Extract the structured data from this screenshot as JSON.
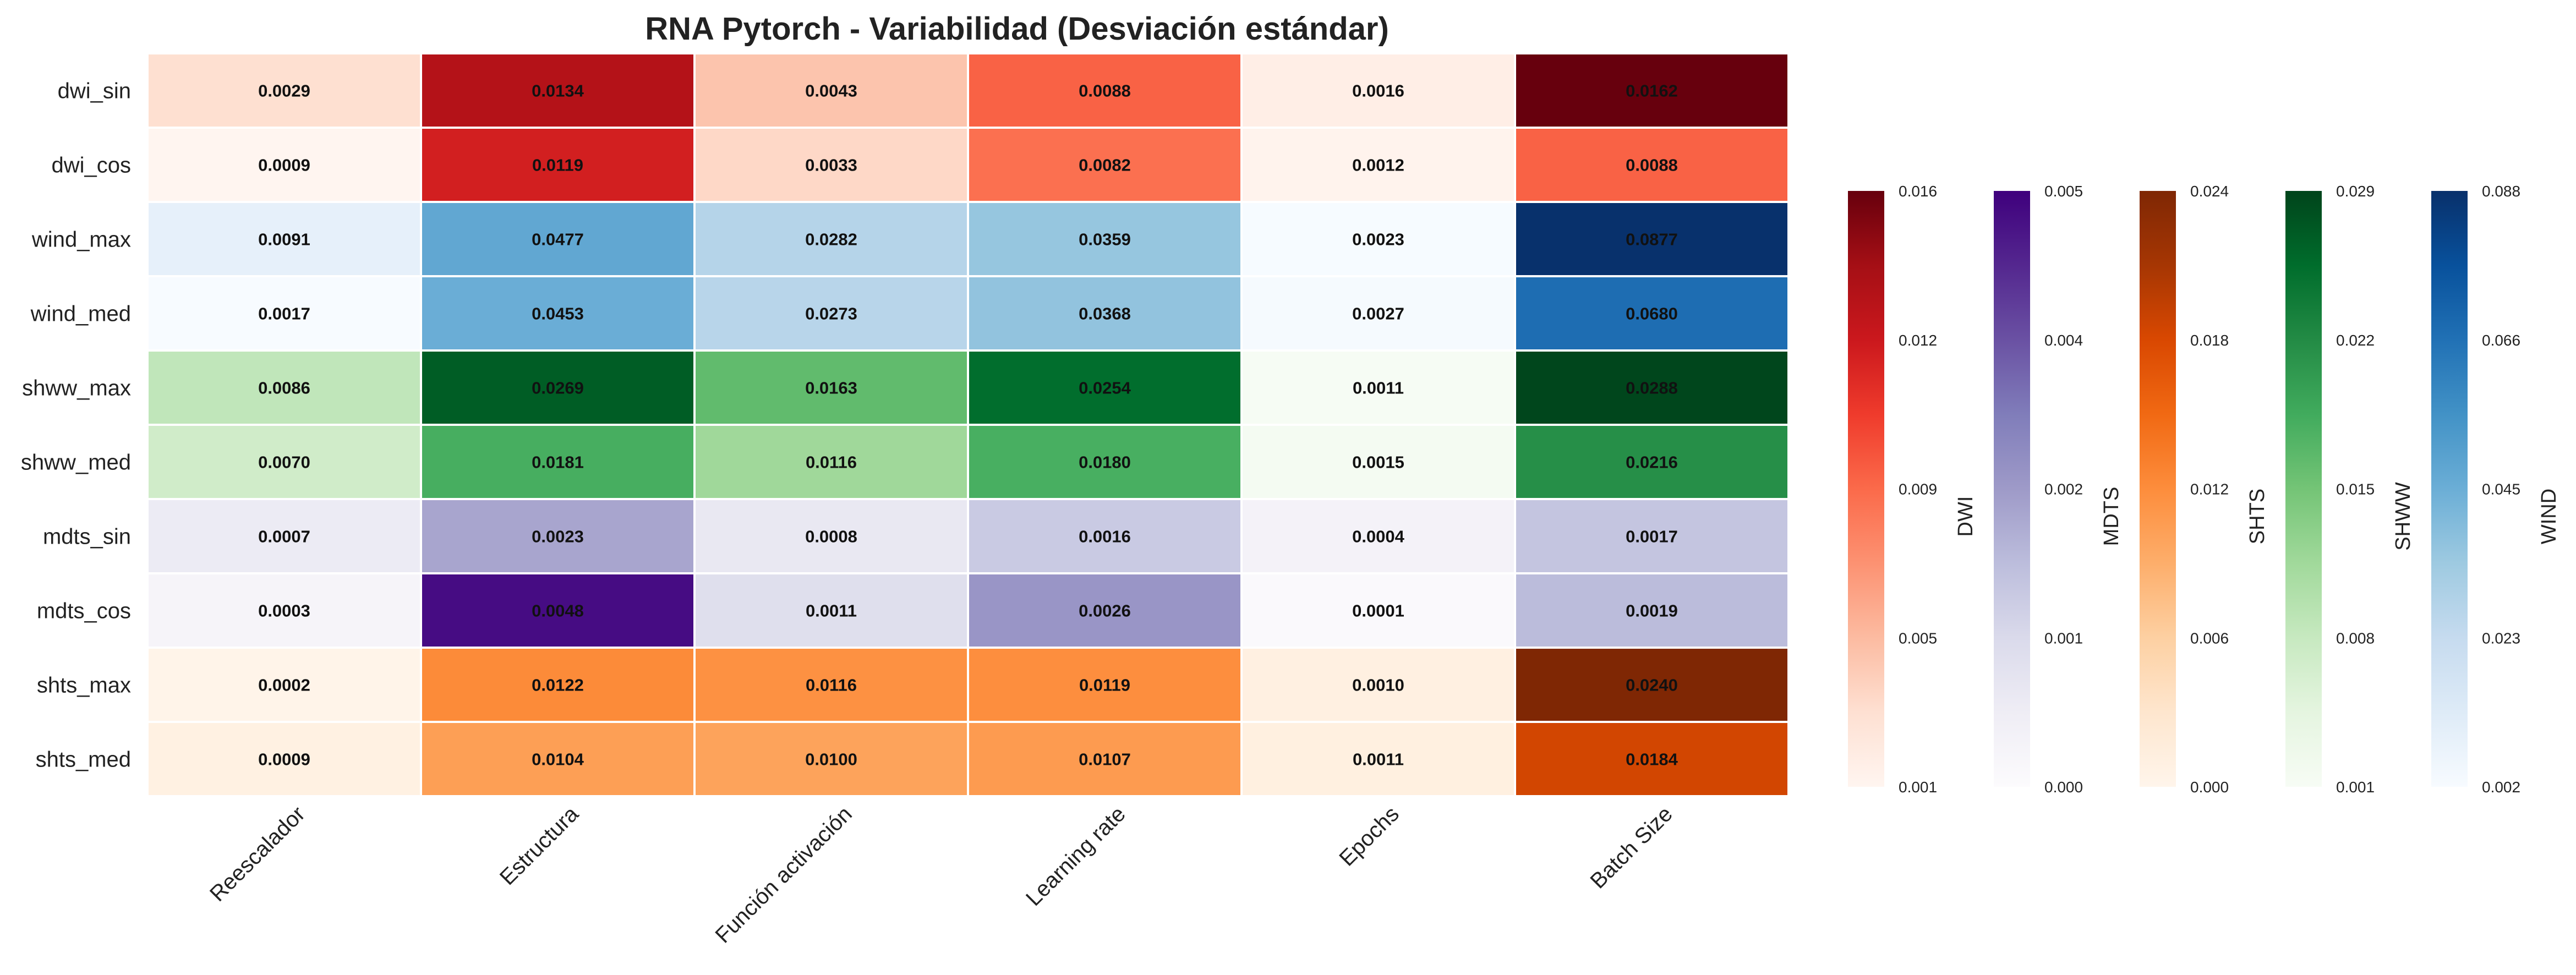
{
  "chart_data": {
    "type": "heatmap",
    "title": "RNA Pytorch - Variabilidad (Desviación estándar)",
    "columns": [
      "Reescalador",
      "Estructura",
      "Función activación",
      "Learning rate",
      "Epochs",
      "Batch Size"
    ],
    "rows": [
      {
        "label": "dwi_sin",
        "group": "DWI",
        "values": [
          "0.0029",
          "0.0134",
          "0.0043",
          "0.0088",
          "0.0016",
          "0.0162"
        ]
      },
      {
        "label": "dwi_cos",
        "group": "DWI",
        "values": [
          "0.0009",
          "0.0119",
          "0.0033",
          "0.0082",
          "0.0012",
          "0.0088"
        ]
      },
      {
        "label": "wind_max",
        "group": "WIND",
        "values": [
          "0.0091",
          "0.0477",
          "0.0282",
          "0.0359",
          "0.0023",
          "0.0877"
        ]
      },
      {
        "label": "wind_med",
        "group": "WIND",
        "values": [
          "0.0017",
          "0.0453",
          "0.0273",
          "0.0368",
          "0.0027",
          "0.0680"
        ]
      },
      {
        "label": "shww_max",
        "group": "SHWW",
        "values": [
          "0.0086",
          "0.0269",
          "0.0163",
          "0.0254",
          "0.0011",
          "0.0288"
        ]
      },
      {
        "label": "shww_med",
        "group": "SHWW",
        "values": [
          "0.0070",
          "0.0181",
          "0.0116",
          "0.0180",
          "0.0015",
          "0.0216"
        ]
      },
      {
        "label": "mdts_sin",
        "group": "MDTS",
        "values": [
          "0.0007",
          "0.0023",
          "0.0008",
          "0.0016",
          "0.0004",
          "0.0017"
        ]
      },
      {
        "label": "mdts_cos",
        "group": "MDTS",
        "values": [
          "0.0003",
          "0.0048",
          "0.0011",
          "0.0026",
          "0.0001",
          "0.0019"
        ]
      },
      {
        "label": "shts_max",
        "group": "SHTS",
        "values": [
          "0.0002",
          "0.0122",
          "0.0116",
          "0.0119",
          "0.0010",
          "0.0240"
        ]
      },
      {
        "label": "shts_med",
        "group": "SHTS",
        "values": [
          "0.0009",
          "0.0104",
          "0.0100",
          "0.0107",
          "0.0011",
          "0.0184"
        ]
      }
    ],
    "colorbars": [
      {
        "name": "DWI",
        "colormap": "Reds",
        "min": 0.001,
        "max": 0.016,
        "ticks": [
          "0.016",
          "0.012",
          "0.009",
          "0.005",
          "0.001"
        ]
      },
      {
        "name": "MDTS",
        "colormap": "Purples",
        "min": 0.0,
        "max": 0.005,
        "ticks": [
          "0.005",
          "0.004",
          "0.002",
          "0.001",
          "0.000"
        ]
      },
      {
        "name": "SHTS",
        "colormap": "Oranges",
        "min": 0.0,
        "max": 0.024,
        "ticks": [
          "0.024",
          "0.018",
          "0.012",
          "0.006",
          "0.000"
        ]
      },
      {
        "name": "SHWW",
        "colormap": "Greens",
        "min": 0.001,
        "max": 0.029,
        "ticks": [
          "0.029",
          "0.022",
          "0.015",
          "0.008",
          "0.001"
        ]
      },
      {
        "name": "WIND",
        "colormap": "Blues",
        "min": 0.002,
        "max": 0.088,
        "ticks": [
          "0.088",
          "0.066",
          "0.045",
          "0.023",
          "0.002"
        ]
      }
    ],
    "colormaps": {
      "Reds": [
        "#fff5f0",
        "#fee0d2",
        "#fcbba1",
        "#fc9272",
        "#fb6a4a",
        "#ef3b2c",
        "#cb181d",
        "#a50f15",
        "#67000d"
      ],
      "Purples": [
        "#fcfbfd",
        "#efedf5",
        "#dadaeb",
        "#bcbddc",
        "#9e9ac8",
        "#807dba",
        "#6a51a3",
        "#54278f",
        "#3f007d"
      ],
      "Oranges": [
        "#fff5eb",
        "#fee6ce",
        "#fdd0a2",
        "#fdae6b",
        "#fd8d3c",
        "#f16913",
        "#d94801",
        "#a63603",
        "#7f2704"
      ],
      "Greens": [
        "#f7fcf5",
        "#e5f5e0",
        "#c7e9c0",
        "#a1d99b",
        "#74c476",
        "#41ab5d",
        "#238b45",
        "#006d2c",
        "#00441b"
      ],
      "Blues": [
        "#f7fbff",
        "#deebf7",
        "#c6dbef",
        "#9ecae1",
        "#6baed6",
        "#4292c6",
        "#2171b5",
        "#08519c",
        "#08306b"
      ]
    }
  }
}
